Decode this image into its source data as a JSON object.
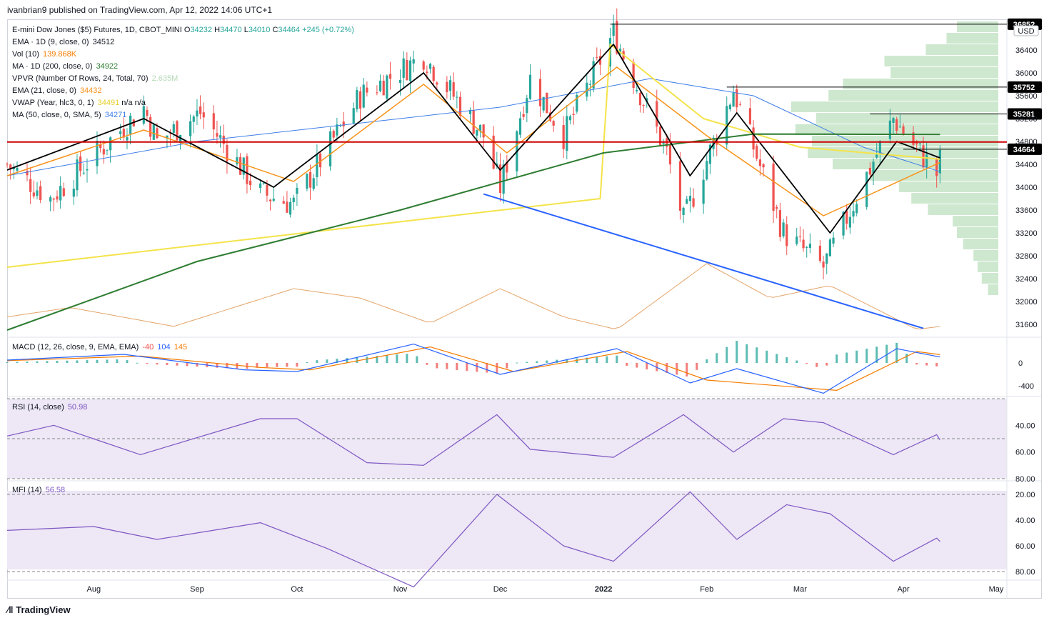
{
  "header": {
    "publisher": "ivanbrian9 published on TradingView.com, Apr 12, 2022 14:06 UTC+1"
  },
  "legend": {
    "main": {
      "title": "E-mini Dow Jones ($5) Futures, 1D, CBOT_MINI",
      "o_label": "O",
      "o": "34232",
      "h_label": "H",
      "h": "34470",
      "l_label": "L",
      "l": "34010",
      "c_label": "C",
      "c": "34464",
      "chg": "+245 (+0.72%)"
    },
    "ema9": {
      "label": "EMA · 1D (9, close, 0)",
      "value": "34512"
    },
    "vol": {
      "label": "Vol (10)",
      "value": "139.868K"
    },
    "ma200": {
      "label": "MA · 1D (200, close, 0)",
      "value": "34922"
    },
    "vpvr": {
      "label": "VPVR (Number Of Rows, 24, Total, 70)",
      "value": "2.635M"
    },
    "ema21": {
      "label": "EMA (21, close, 0)",
      "value": "34432"
    },
    "vwap": {
      "label": "VWAP (Year, hlc3, 0, 1)",
      "value": "34491",
      "extra": "n/a  n/a"
    },
    "ma50": {
      "label": "MA (50, close, 0, SMA, 5)",
      "value": "34271"
    },
    "macd": {
      "label": "MACD (12, 26, close, 9, EMA, EMA)",
      "hist": "-40",
      "macd": "104",
      "signal": "145"
    },
    "rsi": {
      "label": "RSI (14, close)",
      "value": "50.98"
    },
    "mfi": {
      "label": "MFI (14)",
      "value": "56.58"
    }
  },
  "colors": {
    "up": "#26a69a",
    "down": "#ef5350",
    "ema9": "#000000",
    "ema21": "#f7931a",
    "ma200": "#2e7d32",
    "vwap": "#f4e34a",
    "ma50": "#3f7ee8",
    "vol": "#e4a56a",
    "trend": "#2962ff",
    "resistance": "#cc0000",
    "vpvr": "#a5d6a7",
    "macd_line": "#2962ff",
    "signal_line": "#f57c00",
    "rsi": "#7e57c2",
    "osc_bg": "#ede7f6"
  },
  "axes": {
    "price_currency": "USD",
    "price_ticks": [
      "36400",
      "36000",
      "35600",
      "35200",
      "34800",
      "34400",
      "34000",
      "33600",
      "33200",
      "32800",
      "32400",
      "32000",
      "31600"
    ],
    "macd_ticks": [
      "0",
      "-400"
    ],
    "rsi_ticks": [
      "80.00",
      "60.00",
      "40.00"
    ],
    "mfi_ticks": [
      "80.00",
      "60.00",
      "40.00",
      "20.00"
    ],
    "time_labels": [
      "Aug",
      "Sep",
      "Oct",
      "Nov",
      "Dec",
      "2022",
      "Feb",
      "Mar",
      "Apr",
      "May"
    ]
  },
  "level_tags": [
    {
      "price": 36852,
      "label": "36852"
    },
    {
      "price": 35752,
      "label": "35752"
    },
    {
      "price": 35281,
      "label": "35281"
    },
    {
      "price": 34664,
      "label": "34664"
    }
  ],
  "chart_data": {
    "type": "candlestick",
    "symbol": "E-mini Dow Jones ($5) Futures, 1D, CBOT_MINI",
    "price_range": [
      31400,
      36900
    ],
    "resistance_level": 34790,
    "trendline": {
      "from": {
        "date": "2021-11-26",
        "price": 33880
      },
      "to": {
        "date": "2022-04-07",
        "price": 31530
      }
    },
    "time_range": [
      "2021-07-06",
      "2022-05-01"
    ],
    "key_points": [
      {
        "date": "2021-07-06",
        "close": 34400
      },
      {
        "date": "2021-07-19",
        "close": 33800
      },
      {
        "date": "2021-08-16",
        "close": 35400
      },
      {
        "date": "2021-08-20",
        "close": 34800
      },
      {
        "date": "2021-09-02",
        "close": 35300
      },
      {
        "date": "2021-09-20",
        "close": 33900
      },
      {
        "date": "2021-09-30",
        "close": 33700
      },
      {
        "date": "2021-10-20",
        "close": 35600
      },
      {
        "date": "2021-11-08",
        "close": 36300
      },
      {
        "date": "2021-11-26",
        "close": 34900
      },
      {
        "date": "2021-12-01",
        "close": 34000
      },
      {
        "date": "2021-12-10",
        "close": 35900
      },
      {
        "date": "2021-12-20",
        "close": 34900
      },
      {
        "date": "2022-01-04",
        "close": 36700
      },
      {
        "date": "2022-01-20",
        "close": 34600
      },
      {
        "date": "2022-01-25",
        "close": 33400
      },
      {
        "date": "2022-02-09",
        "close": 35700
      },
      {
        "date": "2022-02-24",
        "close": 33200
      },
      {
        "date": "2022-03-08",
        "close": 32600
      },
      {
        "date": "2022-03-29",
        "close": 35200
      },
      {
        "date": "2022-04-11",
        "close": 34230
      },
      {
        "date": "2022-04-12",
        "close": 34464
      }
    ],
    "ema9_points": [
      [
        "2021-07-06",
        34300
      ],
      [
        "2021-08-16",
        35200
      ],
      [
        "2021-09-24",
        34000
      ],
      [
        "2021-11-08",
        36000
      ],
      [
        "2021-12-01",
        34300
      ],
      [
        "2022-01-04",
        36500
      ],
      [
        "2022-01-27",
        34200
      ],
      [
        "2022-02-10",
        35300
      ],
      [
        "2022-03-10",
        33200
      ],
      [
        "2022-03-30",
        34800
      ],
      [
        "2022-04-12",
        34512
      ]
    ],
    "ema21_points": [
      [
        "2021-07-06",
        34200
      ],
      [
        "2021-08-16",
        35000
      ],
      [
        "2021-09-30",
        34100
      ],
      [
        "2021-11-08",
        35800
      ],
      [
        "2021-12-03",
        34600
      ],
      [
        "2022-01-05",
        36100
      ],
      [
        "2022-02-01",
        34900
      ],
      [
        "2022-03-08",
        33500
      ],
      [
        "2022-04-12",
        34432
      ]
    ],
    "ma200_points": [
      [
        "2021-07-06",
        31500
      ],
      [
        "2021-09-01",
        32700
      ],
      [
        "2021-11-01",
        33600
      ],
      [
        "2022-01-01",
        34600
      ],
      [
        "2022-02-15",
        34930
      ],
      [
        "2022-04-12",
        34922
      ]
    ],
    "vwap_points": [
      [
        "2021-07-06",
        32600
      ],
      [
        "2021-12-31",
        33800
      ],
      [
        "2022-01-03",
        36500
      ],
      [
        "2022-01-31",
        35200
      ],
      [
        "2022-03-01",
        34700
      ],
      [
        "2022-04-12",
        34491
      ]
    ],
    "ma50_points": [
      [
        "2021-07-06",
        34200
      ],
      [
        "2021-09-01",
        34800
      ],
      [
        "2021-11-01",
        35200
      ],
      [
        "2021-12-01",
        35400
      ],
      [
        "2022-01-15",
        35900
      ],
      [
        "2022-02-15",
        35600
      ],
      [
        "2022-03-20",
        34700
      ],
      [
        "2022-04-12",
        34271
      ]
    ],
    "volume_ma_points": [
      [
        "2021-07-06",
        60
      ],
      [
        "2021-07-25",
        90
      ],
      [
        "2021-08-25",
        30
      ],
      [
        "2021-09-30",
        150
      ],
      [
        "2021-10-20",
        120
      ],
      [
        "2021-11-10",
        40
      ],
      [
        "2021-12-01",
        150
      ],
      [
        "2021-12-20",
        60
      ],
      [
        "2022-01-05",
        20
      ],
      [
        "2022-02-01",
        230
      ],
      [
        "2022-02-20",
        120
      ],
      [
        "2022-03-10",
        160
      ],
      [
        "2022-04-05",
        20
      ],
      [
        "2022-04-12",
        30
      ]
    ],
    "macd": {
      "ticks": [
        0,
        -400
      ],
      "range": [
        -550,
        400
      ],
      "macd_points": [
        [
          "2021-07-06",
          50
        ],
        [
          "2021-08-10",
          150
        ],
        [
          "2021-09-15",
          -120
        ],
        [
          "2021-10-01",
          -150
        ],
        [
          "2021-11-05",
          330
        ],
        [
          "2021-12-01",
          -200
        ],
        [
          "2022-01-05",
          250
        ],
        [
          "2022-01-27",
          -350
        ],
        [
          "2022-02-10",
          -100
        ],
        [
          "2022-03-08",
          -530
        ],
        [
          "2022-03-30",
          250
        ],
        [
          "2022-04-12",
          104
        ]
      ],
      "signal_points": [
        [
          "2021-07-06",
          40
        ],
        [
          "2021-08-15",
          120
        ],
        [
          "2021-09-20",
          -80
        ],
        [
          "2021-10-05",
          -120
        ],
        [
          "2021-11-10",
          280
        ],
        [
          "2021-12-05",
          -150
        ],
        [
          "2022-01-08",
          200
        ],
        [
          "2022-02-01",
          -300
        ],
        [
          "2022-03-12",
          -480
        ],
        [
          "2022-04-05",
          200
        ],
        [
          "2022-04-12",
          145
        ]
      ]
    },
    "rsi": {
      "range": [
        0,
        100
      ],
      "points": [
        [
          "2021-07-06",
          48
        ],
        [
          "2021-07-20",
          40
        ],
        [
          "2021-08-15",
          62
        ],
        [
          "2021-09-20",
          35
        ],
        [
          "2021-10-01",
          35
        ],
        [
          "2021-10-22",
          68
        ],
        [
          "2021-11-08",
          70
        ],
        [
          "2021-11-30",
          32
        ],
        [
          "2021-12-10",
          58
        ],
        [
          "2022-01-04",
          64
        ],
        [
          "2022-01-25",
          32
        ],
        [
          "2022-02-09",
          60
        ],
        [
          "2022-02-24",
          35
        ],
        [
          "2022-03-08",
          38
        ],
        [
          "2022-03-29",
          62
        ],
        [
          "2022-04-11",
          47
        ],
        [
          "2022-04-12",
          50.98
        ]
      ]
    },
    "mfi": {
      "range": [
        0,
        100
      ],
      "points": [
        [
          "2021-07-06",
          48
        ],
        [
          "2021-08-01",
          45
        ],
        [
          "2021-08-20",
          55
        ],
        [
          "2021-09-20",
          42
        ],
        [
          "2021-10-10",
          62
        ],
        [
          "2021-11-05",
          92
        ],
        [
          "2021-11-30",
          20
        ],
        [
          "2021-12-20",
          60
        ],
        [
          "2022-01-04",
          72
        ],
        [
          "2022-01-27",
          18
        ],
        [
          "2022-02-10",
          55
        ],
        [
          "2022-02-25",
          28
        ],
        [
          "2022-03-10",
          35
        ],
        [
          "2022-03-29",
          72
        ],
        [
          "2022-04-11",
          54
        ],
        [
          "2022-04-12",
          56.58
        ]
      ]
    },
    "vpvr_rows": [
      {
        "price": 36800,
        "vol": 0.2
      },
      {
        "price": 36600,
        "vol": 0.25
      },
      {
        "price": 36400,
        "vol": 0.35
      },
      {
        "price": 36200,
        "vol": 0.55
      },
      {
        "price": 36000,
        "vol": 0.52
      },
      {
        "price": 35800,
        "vol": 0.75
      },
      {
        "price": 35600,
        "vol": 0.82
      },
      {
        "price": 35400,
        "vol": 1.0
      },
      {
        "price": 35200,
        "vol": 0.88
      },
      {
        "price": 35000,
        "vol": 0.98
      },
      {
        "price": 34800,
        "vol": 0.9
      },
      {
        "price": 34600,
        "vol": 0.92
      },
      {
        "price": 34400,
        "vol": 0.8
      },
      {
        "price": 34200,
        "vol": 0.62
      },
      {
        "price": 34000,
        "vol": 0.48
      },
      {
        "price": 33800,
        "vol": 0.42
      },
      {
        "price": 33600,
        "vol": 0.34
      },
      {
        "price": 33400,
        "vol": 0.22
      },
      {
        "price": 33200,
        "vol": 0.2
      },
      {
        "price": 33000,
        "vol": 0.17
      },
      {
        "price": 32800,
        "vol": 0.12
      },
      {
        "price": 32600,
        "vol": 0.1
      },
      {
        "price": 32400,
        "vol": 0.08
      },
      {
        "price": 32200,
        "vol": 0.05
      }
    ]
  },
  "footer": {
    "brand": "TradingView"
  }
}
